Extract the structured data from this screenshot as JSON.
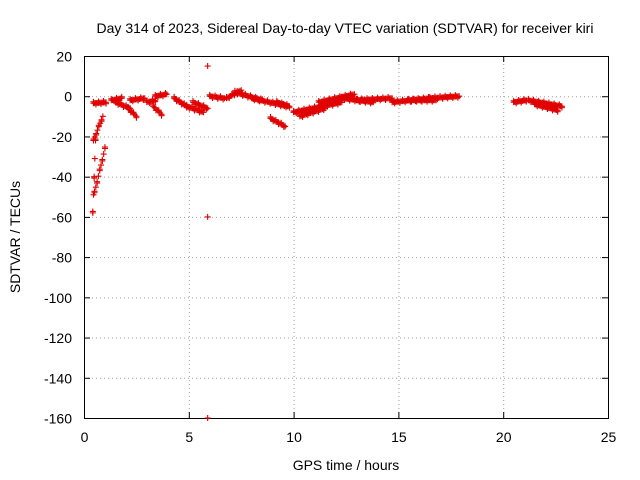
{
  "chart_data": {
    "type": "scatter",
    "title": "Day 314 of 2023, Sidereal Day-to-day VTEC variation (SDTVAR) for receiver kiri",
    "xlabel": "GPS time / hours",
    "ylabel": "SDTVAR / TECUs",
    "xlim": [
      0,
      25
    ],
    "ylim": [
      -160,
      20
    ],
    "xticks": [
      0,
      5,
      10,
      15,
      20,
      25
    ],
    "yticks": [
      -160,
      -140,
      -120,
      -100,
      -80,
      -60,
      -40,
      -20,
      0,
      20
    ],
    "grid": true,
    "marker": "+",
    "color": "#e00000",
    "segments": [
      {
        "x0": 0.42,
        "x1": 0.55,
        "y0": -58,
        "y1": -22
      },
      {
        "x0": 0.45,
        "x1": 0.9,
        "y0": -22,
        "y1": -10
      },
      {
        "x0": 0.5,
        "x1": 1.0,
        "y0": -48,
        "y1": -26
      },
      {
        "x0": 0.45,
        "x1": 1.05,
        "y0": -3.5,
        "y1": -3
      },
      {
        "x0": 1.3,
        "x1": 1.8,
        "y0": -2,
        "y1": -1
      },
      {
        "x0": 1.5,
        "x1": 2.2,
        "y0": -3,
        "y1": -6
      },
      {
        "x0": 2.1,
        "x1": 2.5,
        "y0": -6,
        "y1": -10
      },
      {
        "x0": 2.2,
        "x1": 2.9,
        "y0": -2,
        "y1": -1
      },
      {
        "x0": 3.0,
        "x1": 3.4,
        "y0": -3,
        "y1": -2
      },
      {
        "x0": 3.3,
        "x1": 3.7,
        "y0": -5,
        "y1": -9
      },
      {
        "x0": 3.4,
        "x1": 3.95,
        "y0": 0,
        "y1": 1
      },
      {
        "x0": 4.3,
        "x1": 4.9,
        "y0": -1,
        "y1": -5
      },
      {
        "x0": 4.9,
        "x1": 5.7,
        "y0": -5,
        "y1": -8
      },
      {
        "x0": 5.2,
        "x1": 5.9,
        "y0": -3,
        "y1": -6
      },
      {
        "x0": 6.0,
        "x1": 6.7,
        "y0": 0,
        "y1": -1
      },
      {
        "x0": 6.8,
        "x1": 7.5,
        "y0": -1,
        "y1": 3
      },
      {
        "x0": 7.2,
        "x1": 8.5,
        "y0": 2,
        "y1": -2
      },
      {
        "x0": 8.0,
        "x1": 9.7,
        "y0": -1,
        "y1": -5
      },
      {
        "x0": 8.9,
        "x1": 9.6,
        "y0": -11,
        "y1": -15
      },
      {
        "x0": 9.2,
        "x1": 9.8,
        "y0": -3,
        "y1": -5
      },
      {
        "x0": 10.0,
        "x1": 12.3,
        "y0": -8,
        "y1": -3
      },
      {
        "x0": 10.3,
        "x1": 11.5,
        "y0": -10,
        "y1": -6
      },
      {
        "x0": 11.2,
        "x1": 12.9,
        "y0": -3,
        "y1": 1
      },
      {
        "x0": 12.3,
        "x1": 13.8,
        "y0": -1,
        "y1": -3
      },
      {
        "x0": 13.0,
        "x1": 14.7,
        "y0": -2,
        "y1": -1
      },
      {
        "x0": 14.7,
        "x1": 16.5,
        "y0": -3,
        "y1": -1
      },
      {
        "x0": 15.5,
        "x1": 16.8,
        "y0": -2,
        "y1": -2
      },
      {
        "x0": 16.5,
        "x1": 17.9,
        "y0": -1,
        "y1": 0
      },
      {
        "x0": 20.5,
        "x1": 21.1,
        "y0": -3,
        "y1": -2
      },
      {
        "x0": 21.2,
        "x1": 22.8,
        "y0": -2,
        "y1": -5
      },
      {
        "x0": 21.5,
        "x1": 22.6,
        "y0": -4,
        "y1": -7
      }
    ],
    "outliers": [
      {
        "x": 5.9,
        "y": 15
      },
      {
        "x": 5.9,
        "y": -60
      },
      {
        "x": 5.9,
        "y": -160
      }
    ]
  }
}
